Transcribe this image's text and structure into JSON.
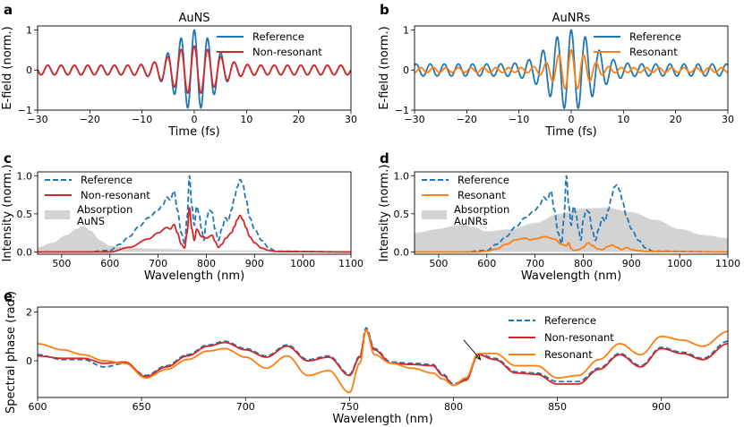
{
  "colors": {
    "reference": "#1f77b4",
    "nonresonant": "#d62728",
    "resonant": "#ff7f0e",
    "absorption": "#d3d3d3"
  },
  "chart_data": [
    {
      "panel": "a",
      "type": "line",
      "title": "AuNS",
      "xlabel": "Time (fs)",
      "ylabel": "E-field (norm.)",
      "xlim": [
        -30,
        30
      ],
      "ylim": [
        -1,
        1.1
      ],
      "xticks": [
        -30,
        -20,
        -10,
        0,
        10,
        20,
        30
      ],
      "xtick_labels": [
        "−30",
        "−20",
        "−10",
        "0",
        "10",
        "20",
        "30"
      ],
      "yticks": [
        -1,
        0,
        1
      ],
      "ytick_labels": [
        "−1",
        "0",
        "1"
      ],
      "legend_loc": "upper right",
      "series": [
        {
          "name": "Reference",
          "color_key": "reference",
          "style": "solid",
          "amp_peak": 1.0,
          "amp_floor": 0.12,
          "width": 3.5,
          "period": 2.55
        },
        {
          "name": "Non-resonant",
          "color_key": "nonresonant",
          "style": "solid",
          "amp_peak": 0.6,
          "amp_floor": 0.12,
          "width": 4.0,
          "period": 2.55
        }
      ]
    },
    {
      "panel": "b",
      "type": "line",
      "title": "AuNRs",
      "xlabel": "Time (fs)",
      "ylabel": "E-field (norm.)",
      "xlim": [
        -30,
        30
      ],
      "ylim": [
        -1,
        1.1
      ],
      "xticks": [
        -30,
        -20,
        -10,
        0,
        10,
        20,
        30
      ],
      "xtick_labels": [
        "−30",
        "−20",
        "−10",
        "0",
        "10",
        "20",
        "30"
      ],
      "yticks": [
        -1,
        0,
        1
      ],
      "ytick_labels": [
        "−1",
        "0",
        "1"
      ],
      "legend_loc": "upper right",
      "series": [
        {
          "name": "Reference",
          "color_key": "reference",
          "style": "solid",
          "amp_peak": 1.0,
          "amp_floor": 0.15,
          "width": 4.0,
          "period": 2.7
        },
        {
          "name": "Resonant",
          "color_key": "resonant",
          "style": "solid",
          "amp_peak": 0.5,
          "amp_floor": 0.06,
          "width": 3.0,
          "period": 2.4
        }
      ]
    },
    {
      "panel": "c",
      "type": "line",
      "xlabel": "Wavelength (nm)",
      "ylabel": "Intensity (norm.)",
      "xlim": [
        450,
        1100
      ],
      "ylim": [
        -0.03,
        1.05
      ],
      "xticks": [
        500,
        600,
        700,
        800,
        900,
        1000,
        1100
      ],
      "xtick_labels": [
        "500",
        "600",
        "700",
        "800",
        "900",
        "1000",
        "1100"
      ],
      "yticks": [
        0,
        0.5,
        1
      ],
      "ytick_labels": [
        "0.0",
        "0.5",
        "1.0"
      ],
      "legend_loc": "upper left",
      "legend_labels": [
        "Reference",
        "Non-resonant",
        "Absorption\nAuNS"
      ],
      "absorption": {
        "name": "Absorption AuNS",
        "x": [
          450,
          480,
          510,
          530,
          545,
          560,
          580,
          600,
          650,
          700,
          800,
          900,
          1100
        ],
        "y": [
          0.06,
          0.12,
          0.22,
          0.3,
          0.34,
          0.28,
          0.15,
          0.08,
          0.05,
          0.04,
          0.02,
          0.02,
          0.01
        ]
      },
      "series": [
        {
          "name": "Reference",
          "color_key": "reference",
          "style": "dashed",
          "x": [
            450,
            550,
            600,
            620,
            640,
            660,
            680,
            700,
            710,
            718,
            725,
            733,
            740,
            748,
            755,
            760,
            765,
            770,
            775,
            780,
            785,
            790,
            795,
            800,
            806,
            812,
            818,
            825,
            832,
            840,
            845,
            852,
            858,
            864,
            870,
            876,
            882,
            890,
            900,
            915,
            930,
            945,
            1100
          ],
          "y": [
            0,
            0,
            0.02,
            0.1,
            0.2,
            0.33,
            0.45,
            0.55,
            0.62,
            0.72,
            0.68,
            0.8,
            0.55,
            0.25,
            0.1,
            0.45,
            1.0,
            0.6,
            0.35,
            0.6,
            0.5,
            0.3,
            0.15,
            0.42,
            0.55,
            0.52,
            0.3,
            0.15,
            0.3,
            0.45,
            0.4,
            0.55,
            0.7,
            0.85,
            0.95,
            0.88,
            0.7,
            0.45,
            0.3,
            0.15,
            0.05,
            0.01,
            0
          ]
        },
        {
          "name": "Non-resonant",
          "color_key": "nonresonant",
          "style": "solid",
          "x": [
            450,
            600,
            640,
            680,
            700,
            718,
            725,
            733,
            740,
            748,
            755,
            760,
            765,
            770,
            775,
            780,
            790,
            800,
            812,
            818,
            825,
            832,
            840,
            852,
            858,
            864,
            870,
            876,
            882,
            890,
            900,
            915,
            930,
            945,
            1100
          ],
          "y": [
            0,
            0,
            0.06,
            0.17,
            0.25,
            0.32,
            0.3,
            0.36,
            0.25,
            0.1,
            0.05,
            0.25,
            0.58,
            0.3,
            0.15,
            0.3,
            0.2,
            0.18,
            0.22,
            0.14,
            0.06,
            0.1,
            0.18,
            0.25,
            0.33,
            0.42,
            0.48,
            0.42,
            0.32,
            0.2,
            0.12,
            0.05,
            0.02,
            0.005,
            0
          ]
        }
      ]
    },
    {
      "panel": "d",
      "type": "line",
      "xlabel": "Wavelength (nm)",
      "ylabel": "Intensity (norm.)",
      "xlim": [
        450,
        1100
      ],
      "ylim": [
        -0.03,
        1.05
      ],
      "xticks": [
        500,
        600,
        700,
        800,
        900,
        1000,
        1100
      ],
      "xtick_labels": [
        "500",
        "600",
        "700",
        "800",
        "900",
        "1000",
        "1100"
      ],
      "yticks": [
        0,
        0.5,
        1
      ],
      "ytick_labels": [
        "0.0",
        "0.5",
        "1.0"
      ],
      "legend_loc": "upper left",
      "legend_labels": [
        "Reference",
        "Resonant",
        "Absorption\nAuNRs"
      ],
      "absorption": {
        "name": "Absorption AuNRs",
        "x": [
          450,
          500,
          530,
          550,
          570,
          600,
          650,
          700,
          750,
          800,
          850,
          900,
          950,
          1000,
          1050,
          1100
        ],
        "y": [
          0.25,
          0.3,
          0.34,
          0.36,
          0.33,
          0.27,
          0.3,
          0.38,
          0.5,
          0.57,
          0.58,
          0.52,
          0.42,
          0.3,
          0.22,
          0.18
        ]
      },
      "series": [
        {
          "name": "Reference",
          "color_key": "reference",
          "style": "dashed",
          "x": [
            450,
            550,
            600,
            620,
            640,
            660,
            680,
            700,
            710,
            718,
            725,
            733,
            740,
            748,
            755,
            760,
            765,
            770,
            775,
            780,
            785,
            790,
            795,
            800,
            806,
            812,
            818,
            825,
            832,
            840,
            845,
            852,
            858,
            864,
            870,
            876,
            882,
            890,
            900,
            915,
            930,
            945,
            1100
          ],
          "y": [
            0,
            0,
            0.02,
            0.1,
            0.2,
            0.33,
            0.45,
            0.55,
            0.62,
            0.72,
            0.68,
            0.8,
            0.55,
            0.25,
            0.1,
            0.45,
            1.0,
            0.6,
            0.35,
            0.6,
            0.5,
            0.3,
            0.15,
            0.42,
            0.55,
            0.52,
            0.3,
            0.15,
            0.3,
            0.45,
            0.4,
            0.55,
            0.7,
            0.85,
            0.88,
            0.8,
            0.65,
            0.45,
            0.3,
            0.15,
            0.05,
            0.01,
            0
          ]
        },
        {
          "name": "Resonant",
          "color_key": "resonant",
          "style": "solid",
          "x": [
            450,
            580,
            600,
            620,
            640,
            660,
            680,
            690,
            700,
            720,
            740,
            755,
            765,
            770,
            775,
            780,
            790,
            800,
            810,
            820,
            830,
            840,
            850,
            860,
            870,
            880,
            890,
            900,
            915,
            930,
            1100
          ],
          "y": [
            0,
            0,
            0.01,
            0.04,
            0.1,
            0.16,
            0.18,
            0.16,
            0.17,
            0.2,
            0.17,
            0.1,
            0.08,
            0.12,
            0.04,
            0.02,
            0.03,
            0.06,
            0.12,
            0.08,
            0.04,
            0.03,
            0.07,
            0.09,
            0.06,
            0.03,
            0.06,
            0.03,
            0.015,
            0.005,
            0
          ]
        }
      ]
    },
    {
      "panel": "e",
      "type": "line",
      "xlabel": "Wavelength (nm)",
      "ylabel": "Spectral phase (rad.)",
      "xlim": [
        600,
        932
      ],
      "ylim": [
        -1.5,
        2.2
      ],
      "xticks": [
        600,
        650,
        700,
        750,
        800,
        850,
        900
      ],
      "xtick_labels": [
        "600",
        "650",
        "700",
        "750",
        "800",
        "850",
        "900"
      ],
      "yticks": [
        0,
        2
      ],
      "ytick_labels": [
        "0",
        "2"
      ],
      "legend_loc": "upper right",
      "annotation": {
        "type": "arrow",
        "from": [
          805,
          0.85
        ],
        "to": [
          813,
          0.05
        ]
      },
      "series": [
        {
          "name": "Reference",
          "color_key": "reference",
          "style": "dashed",
          "x": [
            600,
            612,
            622,
            632,
            642,
            652,
            662,
            672,
            682,
            690,
            700,
            710,
            720,
            730,
            740,
            750,
            755,
            758,
            762,
            770,
            780,
            790,
            795,
            800,
            806,
            812,
            820,
            830,
            840,
            850,
            860,
            870,
            880,
            890,
            900,
            910,
            920,
            932
          ],
          "y": [
            0.25,
            0.05,
            0.05,
            -0.25,
            -0.1,
            -0.6,
            -0.2,
            0.25,
            0.65,
            0.8,
            0.5,
            0.2,
            0.65,
            0.05,
            0.2,
            -0.55,
            0.2,
            1.35,
            0.5,
            -0.05,
            -0.1,
            -0.15,
            -0.55,
            -0.95,
            -0.75,
            0.3,
            0.1,
            -0.45,
            -0.5,
            -0.85,
            -0.85,
            -0.3,
            0.3,
            -0.2,
            0.55,
            0.35,
            0.1,
            0.8
          ]
        },
        {
          "name": "Non-resonant",
          "color_key": "nonresonant",
          "style": "solid",
          "x": [
            600,
            612,
            622,
            632,
            642,
            652,
            662,
            672,
            682,
            690,
            700,
            710,
            720,
            730,
            740,
            750,
            755,
            758,
            762,
            770,
            780,
            790,
            795,
            800,
            806,
            812,
            820,
            830,
            840,
            850,
            860,
            870,
            880,
            890,
            900,
            910,
            920,
            932
          ],
          "y": [
            0.2,
            0.1,
            0.1,
            -0.1,
            -0.05,
            -0.65,
            -0.25,
            0.2,
            0.6,
            0.75,
            0.45,
            0.15,
            0.6,
            0.0,
            0.15,
            -0.6,
            0.15,
            1.25,
            0.45,
            -0.1,
            -0.15,
            -0.2,
            -0.6,
            -1.0,
            -0.8,
            0.25,
            0.05,
            -0.5,
            -0.55,
            -0.95,
            -0.95,
            -0.35,
            0.25,
            -0.25,
            0.5,
            0.3,
            0.05,
            0.7
          ]
        },
        {
          "name": "Resonant",
          "color_key": "resonant",
          "style": "solid",
          "x": [
            600,
            612,
            622,
            632,
            642,
            652,
            662,
            672,
            682,
            690,
            700,
            710,
            720,
            730,
            740,
            750,
            755,
            758,
            762,
            770,
            780,
            790,
            795,
            800,
            806,
            812,
            820,
            830,
            840,
            850,
            860,
            870,
            880,
            890,
            900,
            910,
            920,
            932
          ],
          "y": [
            0.7,
            0.45,
            0.25,
            0.0,
            -0.1,
            -0.7,
            -0.35,
            0.05,
            0.4,
            0.5,
            0.15,
            -0.3,
            0.2,
            -0.6,
            -0.4,
            -1.3,
            -0.1,
            1.25,
            0.25,
            -0.1,
            -0.3,
            -0.5,
            -0.75,
            -1.0,
            -0.7,
            0.3,
            0.3,
            -0.2,
            -0.2,
            -0.7,
            -0.6,
            0.05,
            0.7,
            0.25,
            1.0,
            0.85,
            0.6,
            1.2
          ]
        }
      ]
    }
  ]
}
